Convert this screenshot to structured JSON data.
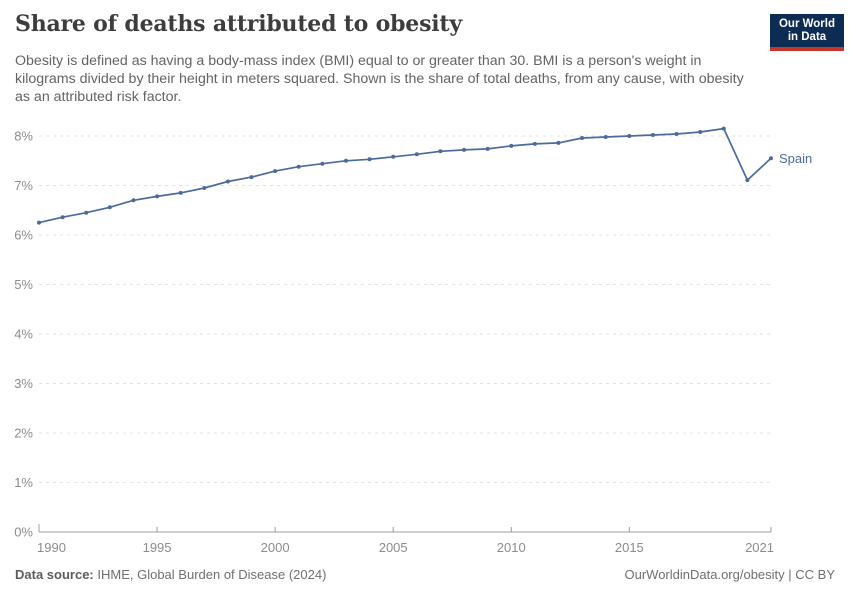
{
  "header": {
    "title": "Share of deaths attributed to obesity",
    "subtitle": "Obesity is defined as having a body-mass index (BMI) equal to or greater than 30. BMI is a person's weight in kilograms divided by their height in meters squared. Shown is the share of total deaths, from any cause, with obesity as an attributed risk factor.",
    "logo": {
      "line1": "Our World",
      "line2": "in Data"
    }
  },
  "chart_data": {
    "type": "line",
    "title": "Share of deaths attributed to obesity",
    "unit": "%",
    "xlim": [
      1990,
      2021
    ],
    "ylim": [
      0,
      8
    ],
    "x_ticks": [
      1990,
      1995,
      2000,
      2005,
      2010,
      2015,
      2021
    ],
    "y_tick_values": [
      0,
      1,
      2,
      3,
      4,
      5,
      6,
      7,
      8
    ],
    "y_tick_labels": [
      "0%",
      "1%",
      "2%",
      "3%",
      "4%",
      "5%",
      "6%",
      "7%",
      "8%"
    ],
    "grid": "horizontal-dashed",
    "legend_position": "end-of-line-label",
    "colors": {
      "line": "#4c6a9c",
      "grid": "#e1e1e1",
      "axis": "#9c9c9c",
      "tick_label": "#8c8c8c"
    },
    "series": [
      {
        "name": "Spain",
        "color": "#4c6a9c",
        "x": [
          1990,
          1991,
          1992,
          1993,
          1994,
          1995,
          1996,
          1997,
          1998,
          1999,
          2000,
          2001,
          2002,
          2003,
          2004,
          2005,
          2006,
          2007,
          2008,
          2009,
          2010,
          2011,
          2012,
          2013,
          2014,
          2015,
          2016,
          2017,
          2018,
          2019,
          2020,
          2021
        ],
        "values": [
          6.25,
          6.36,
          6.45,
          6.56,
          6.7,
          6.78,
          6.85,
          6.95,
          7.08,
          7.17,
          7.29,
          7.38,
          7.44,
          7.5,
          7.53,
          7.58,
          7.63,
          7.69,
          7.72,
          7.74,
          7.8,
          7.84,
          7.86,
          7.96,
          7.98,
          8.0,
          8.02,
          8.04,
          8.08,
          8.15,
          7.11,
          7.55
        ]
      }
    ]
  },
  "footer": {
    "datasource_label": "Data source:",
    "datasource": "IHME, Global Burden of Disease (2024)",
    "url": "OurWorldinData.org/obesity | CC BY"
  }
}
